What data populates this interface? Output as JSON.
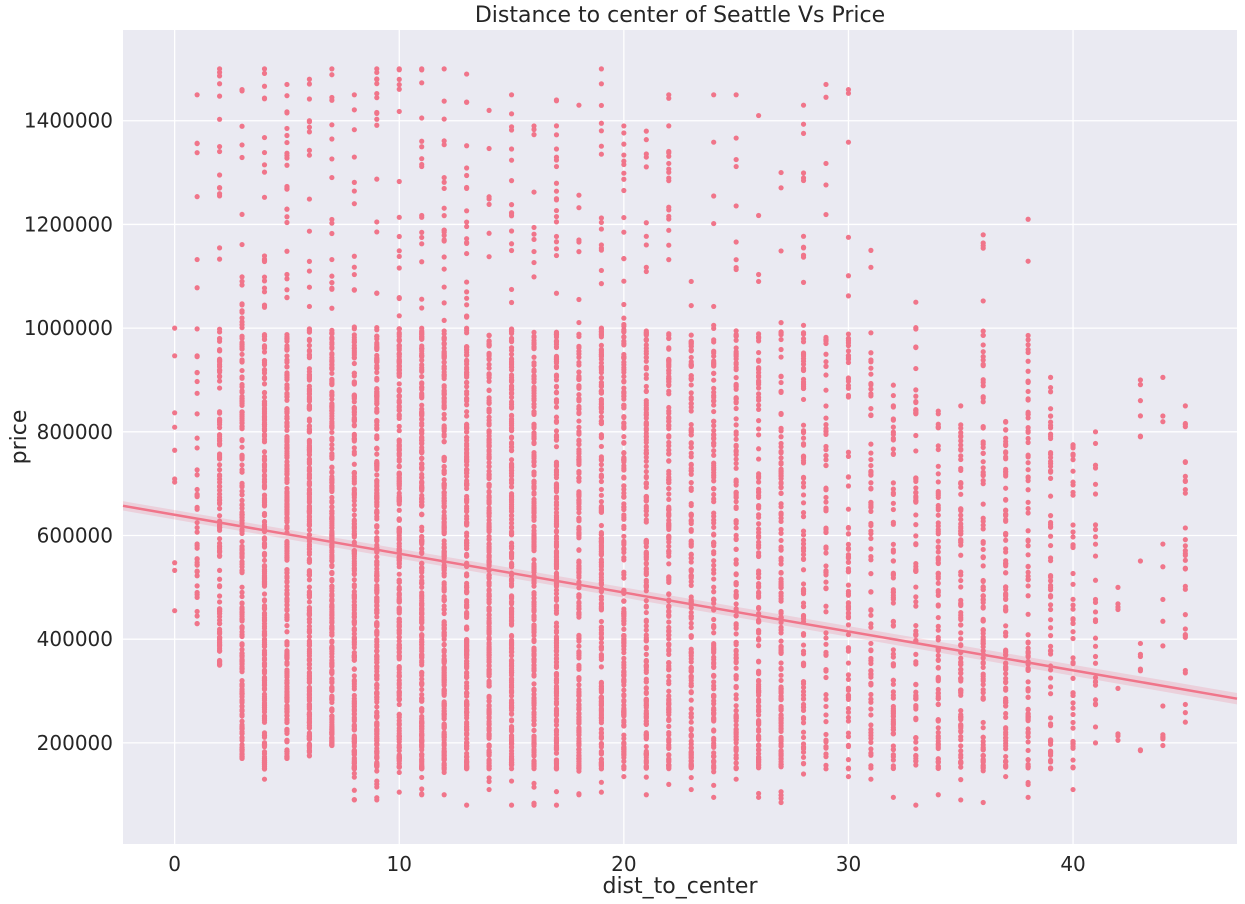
{
  "chart_data": {
    "type": "scatter",
    "title": "Distance to center of Seattle Vs Price",
    "xlabel": "dist_to_center",
    "ylabel": "price",
    "xlim": [
      -2.3,
      47.3
    ],
    "ylim": [
      5000,
      1575000
    ],
    "xticks": [
      0,
      10,
      20,
      30,
      40
    ],
    "yticks": [
      200000,
      400000,
      600000,
      800000,
      1000000,
      1200000,
      1400000
    ],
    "grid": true,
    "legend": "none",
    "color": "#F0758A",
    "background": "#EAEAF2",
    "regression_line": {
      "intercept": 640000,
      "slope": -7500
    },
    "x_values": [
      0,
      1,
      2,
      3,
      4,
      5,
      6,
      7,
      8,
      9,
      10,
      11,
      12,
      13,
      14,
      15,
      16,
      17,
      18,
      19,
      20,
      21,
      22,
      23,
      24,
      25,
      26,
      27,
      28,
      29,
      30,
      31,
      32,
      33,
      34,
      35,
      36,
      37,
      38,
      39,
      40,
      41,
      42,
      43,
      44,
      45
    ],
    "column_stats": [
      {
        "x": 0,
        "min": 455000,
        "max": 1000000,
        "n": 8
      },
      {
        "x": 1,
        "min": 430000,
        "max": 1450000,
        "n": 45
      },
      {
        "x": 2,
        "min": 350000,
        "max": 1500000,
        "n": 140
      },
      {
        "x": 3,
        "min": 170000,
        "max": 1460000,
        "n": 210
      },
      {
        "x": 4,
        "min": 130000,
        "max": 1500000,
        "n": 260
      },
      {
        "x": 5,
        "min": 170000,
        "max": 1470000,
        "n": 250
      },
      {
        "x": 6,
        "min": 175000,
        "max": 1480000,
        "n": 260
      },
      {
        "x": 7,
        "min": 195000,
        "max": 1500000,
        "n": 270
      },
      {
        "x": 8,
        "min": 90000,
        "max": 1450000,
        "n": 230
      },
      {
        "x": 9,
        "min": 90000,
        "max": 1500000,
        "n": 260
      },
      {
        "x": 10,
        "min": 105000,
        "max": 1500000,
        "n": 270
      },
      {
        "x": 11,
        "min": 100000,
        "max": 1500000,
        "n": 280
      },
      {
        "x": 12,
        "min": 100000,
        "max": 1500000,
        "n": 290
      },
      {
        "x": 13,
        "min": 80000,
        "max": 1490000,
        "n": 250
      },
      {
        "x": 14,
        "min": 110000,
        "max": 1420000,
        "n": 240
      },
      {
        "x": 15,
        "min": 80000,
        "max": 1450000,
        "n": 250
      },
      {
        "x": 16,
        "min": 80000,
        "max": 1390000,
        "n": 230
      },
      {
        "x": 17,
        "min": 80000,
        "max": 1440000,
        "n": 240
      },
      {
        "x": 18,
        "min": 100000,
        "max": 1430000,
        "n": 210
      },
      {
        "x": 19,
        "min": 105000,
        "max": 1500000,
        "n": 210
      },
      {
        "x": 20,
        "min": 135000,
        "max": 1390000,
        "n": 200
      },
      {
        "x": 21,
        "min": 100000,
        "max": 1380000,
        "n": 190
      },
      {
        "x": 22,
        "min": 120000,
        "max": 1450000,
        "n": 180
      },
      {
        "x": 23,
        "min": 110000,
        "max": 1090000,
        "n": 160
      },
      {
        "x": 24,
        "min": 95000,
        "max": 1450000,
        "n": 140
      },
      {
        "x": 25,
        "min": 130000,
        "max": 1450000,
        "n": 150
      },
      {
        "x": 26,
        "min": 95000,
        "max": 1410000,
        "n": 140
      },
      {
        "x": 27,
        "min": 85000,
        "max": 1300000,
        "n": 150
      },
      {
        "x": 28,
        "min": 140000,
        "max": 1430000,
        "n": 110
      },
      {
        "x": 29,
        "min": 150000,
        "max": 1470000,
        "n": 80
      },
      {
        "x": 30,
        "min": 135000,
        "max": 1460000,
        "n": 90
      },
      {
        "x": 31,
        "min": 130000,
        "max": 1150000,
        "n": 80
      },
      {
        "x": 32,
        "min": 95000,
        "max": 890000,
        "n": 80
      },
      {
        "x": 33,
        "min": 80000,
        "max": 1050000,
        "n": 80
      },
      {
        "x": 34,
        "min": 100000,
        "max": 840000,
        "n": 90
      },
      {
        "x": 35,
        "min": 90000,
        "max": 850000,
        "n": 100
      },
      {
        "x": 36,
        "min": 85000,
        "max": 1180000,
        "n": 110
      },
      {
        "x": 37,
        "min": 135000,
        "max": 820000,
        "n": 100
      },
      {
        "x": 38,
        "min": 95000,
        "max": 1210000,
        "n": 95
      },
      {
        "x": 39,
        "min": 150000,
        "max": 905000,
        "n": 70
      },
      {
        "x": 40,
        "min": 110000,
        "max": 775000,
        "n": 50
      },
      {
        "x": 41,
        "min": 200000,
        "max": 800000,
        "n": 28
      },
      {
        "x": 42,
        "min": 205000,
        "max": 500000,
        "n": 6
      },
      {
        "x": 43,
        "min": 185000,
        "max": 900000,
        "n": 12
      },
      {
        "x": 44,
        "min": 195000,
        "max": 905000,
        "n": 12
      },
      {
        "x": 45,
        "min": 240000,
        "max": 850000,
        "n": 30
      }
    ]
  }
}
